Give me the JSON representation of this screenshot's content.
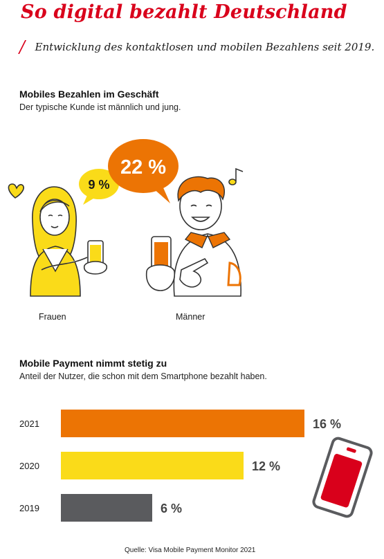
{
  "header": {
    "title": "So digital bezahlt Deutschland",
    "slash": "/",
    "subtitle": "Entwicklung des kontaktlosen und mobilen Bezahlens seit 2019."
  },
  "section1": {
    "heading": "Mobiles Bezahlen im Geschäft",
    "subheading": "Der typische Kunde ist männlich und jung.",
    "women_label": "Frauen",
    "men_label": "Männer",
    "women_value": "9 %",
    "men_value": "22 %"
  },
  "section2": {
    "heading": "Mobile Payment nimmt stetig zu",
    "subheading": "Anteil der Nutzer, die schon mit dem Smartphone bezahlt haben."
  },
  "colors": {
    "red": "#d9001b",
    "orange": "#ec7404",
    "yellow": "#fadb19",
    "grey": "#5a5b5e"
  },
  "icons": [
    "heart-icon",
    "music-note-icon",
    "smartphone-icon"
  ],
  "chart_data": [
    {
      "type": "bar",
      "categories": [
        "Frauen",
        "Männer"
      ],
      "values": [
        9,
        22
      ],
      "unit": "%",
      "title": "Mobiles Bezahlen im Geschäft"
    },
    {
      "type": "bar",
      "orientation": "horizontal",
      "title": "Mobile Payment nimmt stetig zu",
      "categories": [
        "2021",
        "2020",
        "2019"
      ],
      "values": [
        16,
        12,
        6
      ],
      "value_labels": [
        "16 %",
        "12 %",
        "6 %"
      ],
      "bar_colors": [
        "#ec7404",
        "#fadb19",
        "#5a5b5e"
      ],
      "unit": "%"
    }
  ],
  "source": "Quelle: Visa Mobile Payment Monitor 2021"
}
